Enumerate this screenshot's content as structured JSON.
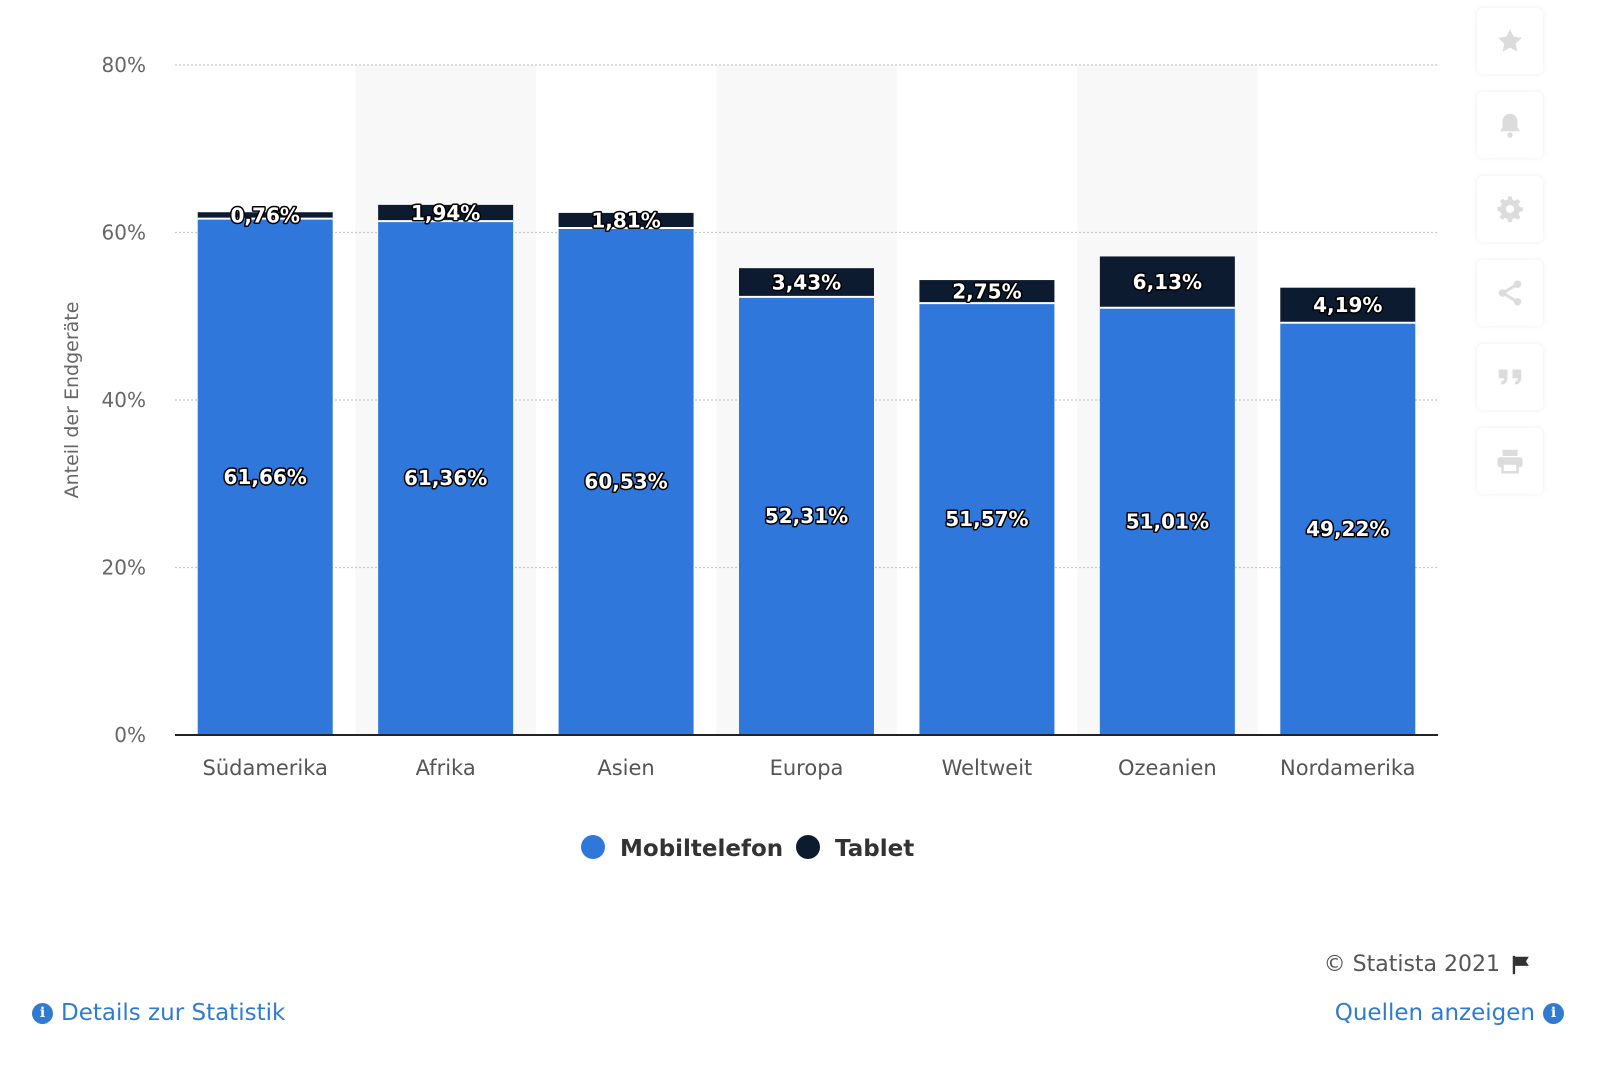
{
  "chart_data": {
    "type": "bar",
    "stacked": true,
    "categories": [
      "Südamerika",
      "Afrika",
      "Asien",
      "Europa",
      "Weltweit",
      "Ozeanien",
      "Nordamerika"
    ],
    "series": [
      {
        "name": "Mobiltelefon",
        "color": "#2f77db",
        "values": [
          61.66,
          61.36,
          60.53,
          52.31,
          51.57,
          51.01,
          49.22
        ],
        "labels": [
          "61,66%",
          "61,36%",
          "60,53%",
          "52,31%",
          "51,57%",
          "51,01%",
          "49,22%"
        ]
      },
      {
        "name": "Tablet",
        "color": "#0d1b30",
        "values": [
          0.76,
          1.94,
          1.81,
          3.43,
          2.75,
          6.13,
          4.19
        ],
        "labels": [
          "0,76%",
          "1,94%",
          "1,81%",
          "3,43%",
          "2,75%",
          "6,13%",
          "4,19%"
        ]
      }
    ],
    "ylabel": "Anteil der Endgeräte",
    "xlabel": "",
    "ylim": [
      0,
      80
    ],
    "yticks": [
      0,
      20,
      40,
      60,
      80
    ],
    "ytick_labels": [
      "0%",
      "20%",
      "40%",
      "60%",
      "80%"
    ],
    "grid": true,
    "legend_position": "bottom-center"
  },
  "toolbar": {
    "icons": [
      "star-icon",
      "bell-icon",
      "gear-icon",
      "share-icon",
      "quote-icon",
      "print-icon"
    ]
  },
  "footer": {
    "copyright": "© Statista 2021",
    "details_link": "Details zur Statistik",
    "sources_link": "Quellen anzeigen"
  }
}
